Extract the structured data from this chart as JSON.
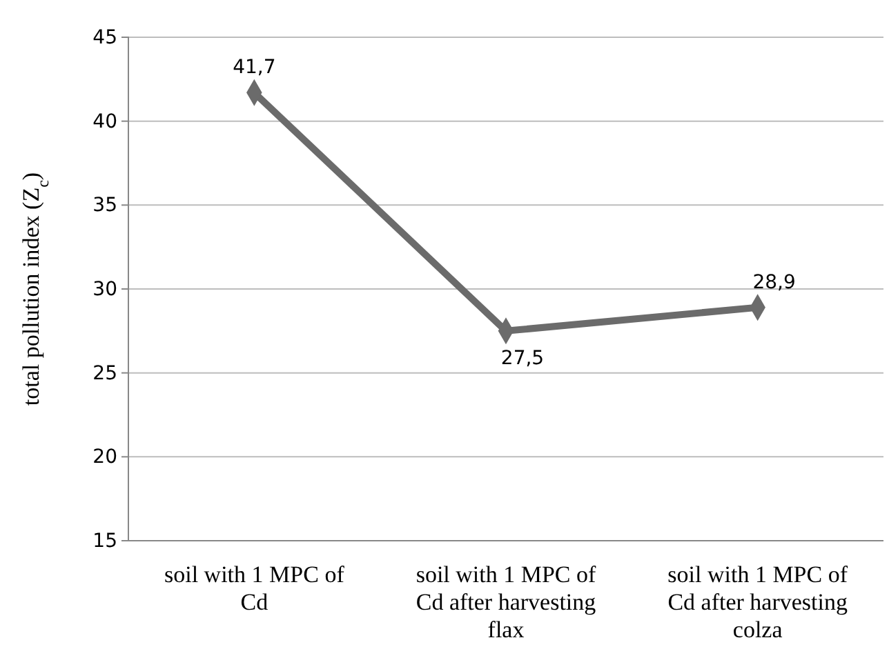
{
  "chart_data": {
    "type": "line",
    "ylabel": "total pollution index (Z$_{c}$)",
    "categories": [
      "soil with 1 MPC of Cd",
      "soil with 1 MPC of Cd after harvesting flax",
      "soil with 1 MPC of Cd after harvesting colza"
    ],
    "series": [
      {
        "color": "#6b6b6b",
        "values": [
          41.7,
          27.5,
          28.9
        ],
        "value_labels": [
          "41,7",
          "27,5",
          "28,9"
        ]
      }
    ],
    "ylim": [
      15,
      45
    ],
    "yticks": [
      15,
      20,
      25,
      30,
      35,
      40,
      45
    ],
    "grid": "y",
    "marker": "diamond",
    "line_style": "solid"
  }
}
